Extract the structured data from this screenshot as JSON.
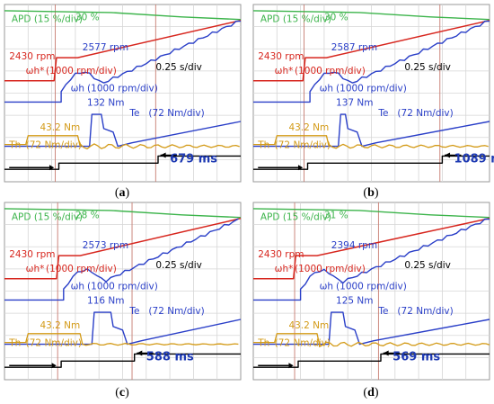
{
  "chart_data": [
    {
      "type": "line",
      "caption": "a",
      "time_division": "0.25 s/div",
      "ms_label": "679 ms",
      "labels": {
        "apd": "APD (15 %/div)",
        "apd_value": "30 %",
        "speed_ref": "2430 rpm",
        "speed_peak": "2577 rpm",
        "wref_sym": "ωh*",
        "wref_div": "(1000 rpm/div)",
        "wh_sym": "ωh",
        "wh_div": "(1000 rpm/div)",
        "te_peak": "132 Nm",
        "te_sym": "Te",
        "te_div": "(72 Nm/div)",
        "th_value": "43.2 Nm",
        "th_sym": "Th",
        "th_div": "(72 Nm/div)"
      }
    },
    {
      "type": "line",
      "caption": "b",
      "time_division": "0.25 s/div",
      "ms_label": "1089 ms",
      "labels": {
        "apd": "APD (15 %/div)",
        "apd_value": "30 %",
        "speed_ref": "2430 rpm",
        "speed_peak": "2587 rpm",
        "wref_sym": "ωh*",
        "wref_div": "(1000 rpm/div)",
        "wh_sym": "ωh",
        "wh_div": "(1000 rpm/div)",
        "te_peak": "137 Nm",
        "te_sym": "Te",
        "te_div": "(72 Nm/div)",
        "th_value": "43.2 Nm",
        "th_sym": "Th",
        "th_div": "(72 Nm/div)"
      }
    },
    {
      "type": "line",
      "caption": "c",
      "time_division": "0.25 s/div",
      "ms_label": "588 ms",
      "labels": {
        "apd": "APD (15 %/div)",
        "apd_value": "28 %",
        "speed_ref": "2430 rpm",
        "speed_peak": "2573 rpm",
        "wref_sym": "ωh*",
        "wref_div": "(1000 rpm/div)",
        "wh_sym": "ωh",
        "wh_div": "(1000 rpm/div)",
        "te_peak": "116 Nm",
        "te_sym": "Te",
        "te_div": "(72 Nm/div)",
        "th_value": "43.2 Nm",
        "th_sym": "Th",
        "th_div": "(72 Nm/div)"
      }
    },
    {
      "type": "line",
      "caption": "d",
      "time_division": "0.25 s/div",
      "ms_label": "569 ms",
      "labels": {
        "apd": "APD (15 %/div)",
        "apd_value": "31 %",
        "speed_ref": "2430 rpm",
        "speed_peak": "2394 rpm",
        "wref_sym": "ωh*",
        "wref_div": "(1000 rpm/div)",
        "wh_sym": "ωh",
        "wh_div": "(1000 rpm/div)",
        "te_peak": "125 Nm",
        "te_sym": "Te",
        "te_div": "(72 Nm/div)",
        "th_value": "43.2 Nm",
        "th_sym": "Th",
        "th_div": "(72 Nm/div)"
      }
    }
  ],
  "colors": {
    "apd": "#3cb44b",
    "reference": "#d7261e",
    "speed": "#2a3fc8",
    "torque_e": "#2a3fc8",
    "torque_h": "#d39a16",
    "step": "#000000",
    "cursor": "#c77b70"
  }
}
